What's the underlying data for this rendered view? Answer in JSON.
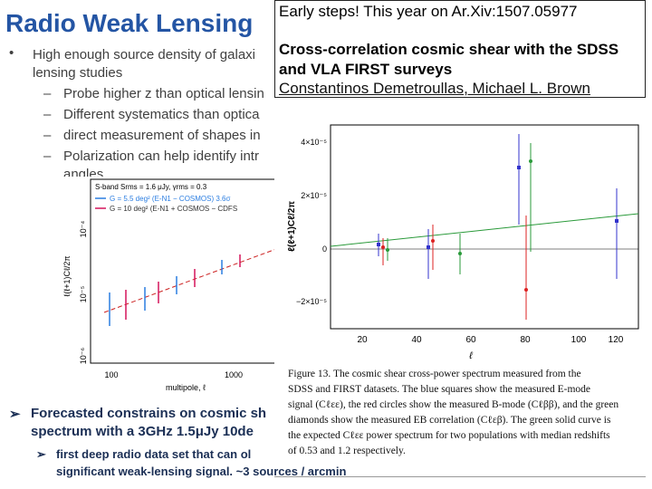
{
  "title": "Radio Weak Lensing",
  "bullets": {
    "main": [
      "High enough source density of galaxi",
      "lensing studies"
    ],
    "subs": [
      "Probe higher z than optical lensin",
      "Different systematics than optica",
      "direct measurement of shapes in",
      "Polarization can help identify intr",
      "angles"
    ]
  },
  "note_box": {
    "line1": "Early steps! This year on Ar.Xiv:1507.05977",
    "line2": "Cross-correlation cosmic shear with the SDSS",
    "line3": "and VLA FIRST surveys",
    "authors": "Constantinos Demetroullas, Michael L. Brown"
  },
  "right_figure": {
    "y_label": "ℓ(ℓ+1)Cℓ/2π",
    "x_label": "ℓ",
    "y_ticks": [
      "4×10⁻⁵",
      "2×10⁻⁵",
      "0",
      "−2×10⁻⁵"
    ],
    "x_ticks": [
      "20",
      "40",
      "60",
      "80",
      "100",
      "120"
    ],
    "caption": [
      "Figure 13. The cosmic shear cross-power spectrum measured from the",
      "SDSS and FIRST datasets. The blue squares show the measured E-mode",
      "signal (Cℓεε), the red circles show the measured B-mode (Cℓββ), and the green",
      "diamonds show the measured EB correlation (Cℓεβ). The green solid curve is",
      "the expected Cℓεε power spectrum for two populations with median redshifts",
      "of 0.53 and 1.2 respectively."
    ]
  },
  "left_figure": {
    "legend": [
      "S-band  Srms = 1.6 μJy, γrms = 0.3",
      "G = 5.5 deg² (E-N1 − COSMOS) 3.6σ",
      "G = 10 deg² (E-N1 + COSMOS − CDFS"
    ],
    "y_label": "ℓ(ℓ+1)Cℓ/2π",
    "y_ticks": [
      "10⁻⁴",
      "10⁻⁵",
      "10⁻⁶"
    ],
    "x_ticks": [
      "100",
      "1000"
    ],
    "x_label": "multipole, ℓ"
  },
  "bottom": {
    "main": [
      "Forecasted constrains on cosmic sh",
      "spectrum with a 3GHz 1.5μJy 10de"
    ],
    "sub": [
      "first deep radio data set that can ol",
      "significant weak-lensing signal. ~3 sources / arcmin"
    ]
  }
}
